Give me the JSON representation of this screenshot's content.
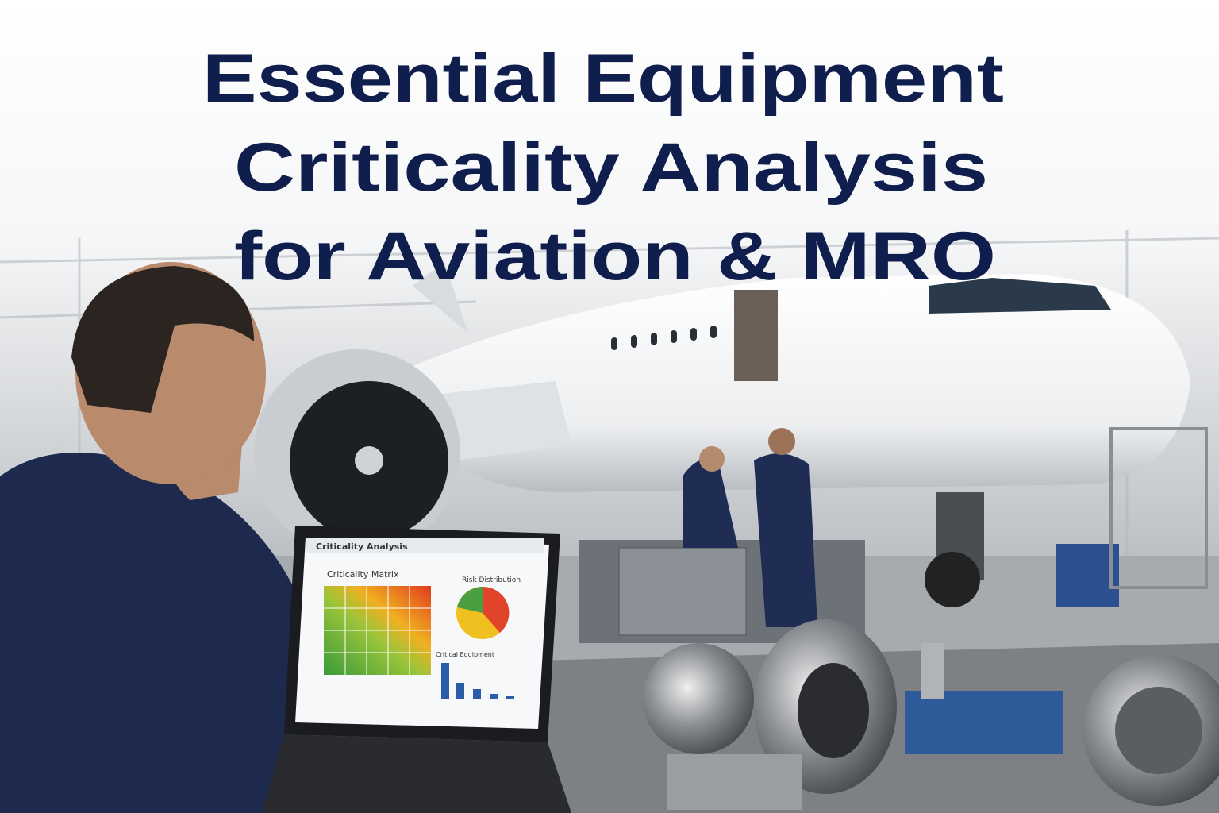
{
  "header": {
    "title_lines": [
      "Essential Equipment",
      "Criticality Analysis",
      "for Aviation & MRO"
    ]
  },
  "laptop": {
    "app_title": "Criticality Analysis",
    "matrix_title": "Criticality Matrix",
    "pie_title": "Risk Distribution",
    "bar_title": "Critical Equipment"
  }
}
